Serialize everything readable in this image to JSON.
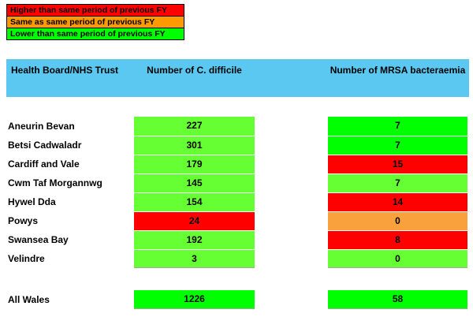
{
  "legend": {
    "items": [
      {
        "label": "Higher than same period of previous FY",
        "color": "#FF0000"
      },
      {
        "label": "Same as same period of previous FY",
        "color": "#FF9900"
      },
      {
        "label": "Lower than same period of previous FY",
        "color": "#00FF00"
      }
    ]
  },
  "header": {
    "background": "#5BC8F2",
    "col_trust": "Health Board/NHS Trust",
    "col_cdiff": "Number of C. difficile",
    "col_mrsa": "Number of MRSA bacteraemia"
  },
  "status_colors": {
    "higher": "#FF0000",
    "same": "#F9A13D",
    "lower_bright": "#00FF00",
    "lower_light": "#66FF33"
  },
  "table": {
    "rows": [
      {
        "name": "Aneurin Bevan",
        "cdiff": {
          "value": "227",
          "color": "#66FF33"
        },
        "mrsa": {
          "value": "7",
          "color": "#00FF00"
        }
      },
      {
        "name": "Betsi Cadwaladr",
        "cdiff": {
          "value": "301",
          "color": "#66FF33"
        },
        "mrsa": {
          "value": "7",
          "color": "#00FF00"
        }
      },
      {
        "name": "Cardiff and Vale",
        "cdiff": {
          "value": "179",
          "color": "#66FF33"
        },
        "mrsa": {
          "value": "15",
          "color": "#FF0000"
        }
      },
      {
        "name": "Cwm Taf Morgannwg",
        "cdiff": {
          "value": "145",
          "color": "#66FF33"
        },
        "mrsa": {
          "value": "7",
          "color": "#66FF33"
        }
      },
      {
        "name": "Hywel Dda",
        "cdiff": {
          "value": "154",
          "color": "#66FF33"
        },
        "mrsa": {
          "value": "14",
          "color": "#FF0000"
        }
      },
      {
        "name": "Powys",
        "cdiff": {
          "value": "24",
          "color": "#FF0000"
        },
        "mrsa": {
          "value": "0",
          "color": "#F9A13D"
        }
      },
      {
        "name": "Swansea Bay",
        "cdiff": {
          "value": "192",
          "color": "#66FF33"
        },
        "mrsa": {
          "value": "8",
          "color": "#FF0000"
        }
      },
      {
        "name": "Velindre",
        "cdiff": {
          "value": "3",
          "color": "#66FF33"
        },
        "mrsa": {
          "value": "0",
          "color": "#66FF33"
        }
      }
    ],
    "total": {
      "name": "All Wales",
      "cdiff": {
        "value": "1226",
        "color": "#00FF00"
      },
      "mrsa": {
        "value": "58",
        "color": "#00FF00"
      }
    }
  },
  "layout_note": ""
}
